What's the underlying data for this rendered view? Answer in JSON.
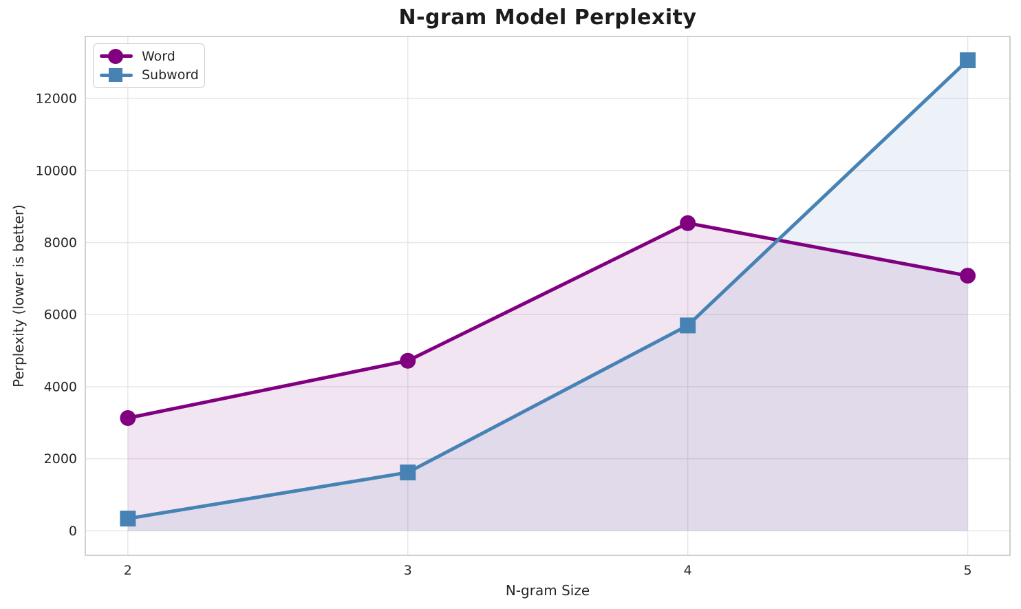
{
  "chart_data": {
    "type": "line",
    "title": "N-gram Model Perplexity",
    "xlabel": "N-gram Size",
    "ylabel": "Perplexity (lower is better)",
    "x": [
      2,
      3,
      4,
      5
    ],
    "series": [
      {
        "name": "Word",
        "marker": "circle",
        "color": "#800080",
        "fill": "rgba(128,0,128,0.1)",
        "values": [
          3130,
          4720,
          8540,
          7080
        ]
      },
      {
        "name": "Subword",
        "marker": "square",
        "color": "#4682b4",
        "fill": "rgba(70,130,180,0.1)",
        "values": [
          340,
          1620,
          5700,
          13060
        ]
      }
    ],
    "xticks": [
      2,
      3,
      4,
      5
    ],
    "yticks": [
      0,
      2000,
      4000,
      6000,
      8000,
      10000,
      12000
    ],
    "xlim": [
      1.848,
      5.151
    ],
    "ylim": [
      -680,
      13720
    ],
    "fill_baseline": 0,
    "grid": true,
    "legend_position": "upper left",
    "grid_color": "#e7e7e7",
    "spine_color": "#c4c4c4",
    "text_color": "#262626"
  }
}
